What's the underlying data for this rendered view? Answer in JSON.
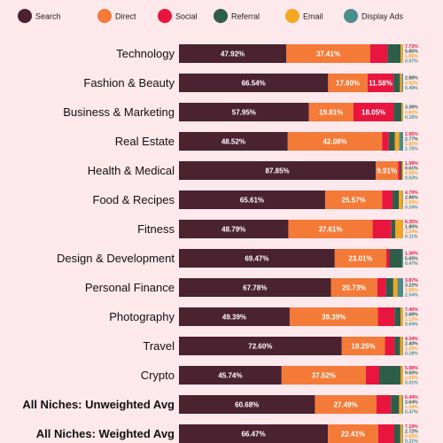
{
  "chart_data": {
    "type": "bar",
    "orientation": "horizontal",
    "stacked": true,
    "legend_position": "top",
    "categories": [
      "Technology",
      "Fashion & Beauty",
      "Business & Marketing",
      "Real Estate",
      "Health & Medical",
      "Food & Recipes",
      "Fitness",
      "Design & Development",
      "Personal Finance",
      "Photography",
      "Travel",
      "Crypto",
      "All Niches: Unweighted Avg",
      "All Niches: Weighted Avg"
    ],
    "bold_categories": [
      "All Niches: Unweighted Avg",
      "All Niches: Weighted Avg"
    ],
    "series": [
      {
        "name": "Search",
        "color": "#4a2230",
        "values": [
          47.92,
          66.54,
          57.95,
          48.52,
          87.85,
          65.61,
          48.79,
          69.47,
          67.78,
          49.39,
          72.6,
          45.74,
          60.68,
          66.47
        ]
      },
      {
        "name": "Direct",
        "color": "#f47a38",
        "values": [
          37.41,
          17.6,
          19.81,
          42.08,
          9.91,
          25.57,
          37.61,
          23.01,
          20.73,
          39.39,
          19.25,
          37.52,
          27.49,
          22.41
        ]
      },
      {
        "name": "Social",
        "color": "#e8153f",
        "values": [
          7.73,
          11.58,
          18.05,
          2.95,
          1.08,
          4.7,
          8.35,
          1.36,
          3.87,
          7.4,
          4.34,
          5.98,
          6.44,
          7.19
        ]
      },
      {
        "name": "Referral",
        "color": "#2e5e4a",
        "values": [
          5.85,
          2.88,
          3.39,
          2.77,
          0.61,
          2.86,
          1.8,
          5.65,
          3.22,
          2.68,
          2.4,
          9.6,
          3.64,
          2.72
        ]
      },
      {
        "name": "Email",
        "color": "#f5a623",
        "values": [
          1.05,
          0.92,
          0.62,
          1.9,
          0.55,
          1.65,
          3.34,
          0.0,
          1.85,
          1.12,
          1.2,
          1.05,
          1.34,
          0.93
        ]
      },
      {
        "name": "Display Ads",
        "color": "#4a8f8c",
        "values": [
          0.07,
          0.49,
          0.16,
          1.75,
          0.03,
          0.24,
          0.11,
          0.47,
          2.54,
          0.04,
          0.18,
          0.01,
          0.47,
          0.31
        ]
      }
    ],
    "bar_labels": [
      [
        "47.92%",
        "37.41%",
        "",
        "",
        "",
        ""
      ],
      [
        "66.54%",
        "17.60%",
        "11.58%",
        "",
        "",
        ""
      ],
      [
        "57.95%",
        "19.81%",
        "18.05%",
        "",
        "",
        ""
      ],
      [
        "48.52%",
        "42.08%",
        "",
        "",
        "",
        ""
      ],
      [
        "87.85%",
        "9.91%",
        "",
        "",
        "",
        ""
      ],
      [
        "65.61%",
        "25.57%",
        "",
        "",
        "",
        ""
      ],
      [
        "48.79%",
        "37.61%",
        "",
        "",
        "",
        ""
      ],
      [
        "69.47%",
        "23.01%",
        "",
        "",
        "",
        ""
      ],
      [
        "67.78%",
        "20.73%",
        "",
        "",
        "",
        ""
      ],
      [
        "49.39%",
        "39.39%",
        "",
        "",
        "",
        ""
      ],
      [
        "72.60%",
        "19.25%",
        "",
        "",
        "",
        ""
      ],
      [
        "45.74%",
        "37.52%",
        "",
        "",
        "",
        ""
      ],
      [
        "60.68%",
        "27.49%",
        "",
        "",
        "",
        ""
      ],
      [
        "66.47%",
        "22.41%",
        "",
        "",
        "",
        ""
      ]
    ],
    "side_labels": [
      [
        "7.73%",
        "5.85%",
        "1.05%",
        "0.07%"
      ],
      [
        "2.88%",
        "0.92%",
        "0.49%"
      ],
      [
        "3.39%",
        "0.62%",
        "0.16%"
      ],
      [
        "2.95%",
        "2.77%",
        "1.90%",
        "1.75%"
      ],
      [
        "1.08%",
        "0.61%",
        "0.55%",
        "0.03%"
      ],
      [
        "4.70%",
        "2.86%",
        "1.65%",
        "0.24%"
      ],
      [
        "8.35%",
        "1.80%",
        "3.34%",
        "0.11%"
      ],
      [
        "1.36%",
        "5.65%",
        "0.47%"
      ],
      [
        "3.87%",
        "3.22%",
        "1.85%",
        "2.54%"
      ],
      [
        "7.40%",
        "2.68%",
        "1.12%",
        "0.04%"
      ],
      [
        "4.34%",
        "2.40%",
        "1.20%",
        "0.18%"
      ],
      [
        "5.98%",
        "9.60%",
        "1.05%",
        "0.01%"
      ],
      [
        "6.44%",
        "3.64%",
        "1.34%",
        "0.47%"
      ],
      [
        "7.19%",
        "2.72%",
        "0.93%",
        "0.31%"
      ]
    ],
    "side_label_series": [
      [
        "Social",
        "Referral",
        "Email",
        "Display Ads"
      ],
      [
        "Referral",
        "Email",
        "Display Ads"
      ],
      [
        "Referral",
        "Email",
        "Display Ads"
      ],
      [
        "Social",
        "Referral",
        "Email",
        "Display Ads"
      ],
      [
        "Social",
        "Referral",
        "Email",
        "Display Ads"
      ],
      [
        "Social",
        "Referral",
        "Email",
        "Display Ads"
      ],
      [
        "Social",
        "Referral",
        "Email",
        "Display Ads"
      ],
      [
        "Social",
        "Referral",
        "Display Ads"
      ],
      [
        "Social",
        "Referral",
        "Email",
        "Display Ads"
      ],
      [
        "Social",
        "Referral",
        "Email",
        "Display Ads"
      ],
      [
        "Social",
        "Referral",
        "Email",
        "Display Ads"
      ],
      [
        "Social",
        "Referral",
        "Email",
        "Display Ads"
      ],
      [
        "Social",
        "Referral",
        "Email",
        "Display Ads"
      ],
      [
        "Social",
        "Referral",
        "Email",
        "Display Ads"
      ]
    ],
    "xlim": [
      0,
      100
    ],
    "grid": false
  }
}
